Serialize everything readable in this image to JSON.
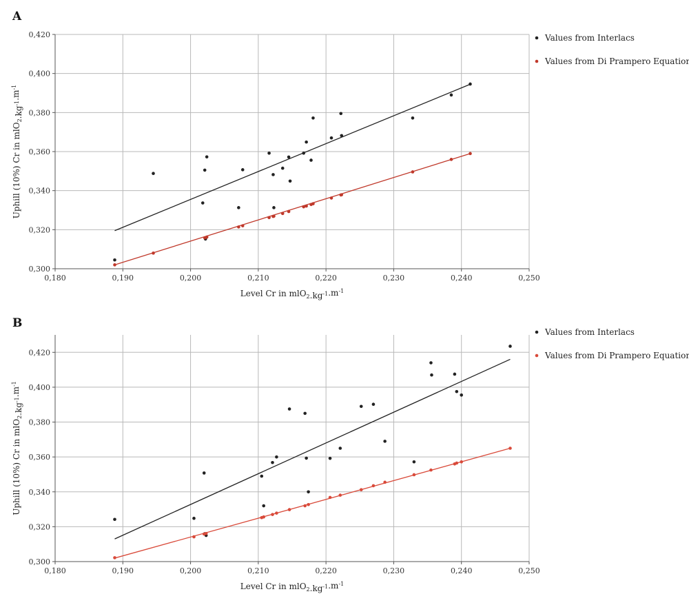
{
  "panels": [
    {
      "letter": "A",
      "chart_data": {
        "type": "scatter",
        "xlabel": "Level Cr in mlO2.kg-1.m-1",
        "ylabel": "Uphill (10%) Cr in mlO2.kg-1.m-1",
        "xlim": [
          0.18,
          0.25
        ],
        "ylim": [
          0.3,
          0.42
        ],
        "xticks": [
          "0,180",
          "0,190",
          "0,200",
          "0,210",
          "0,220",
          "0,230",
          "0,240",
          "0,250"
        ],
        "yticks": [
          "0,300",
          "0,320",
          "0,340",
          "0,360",
          "0,380",
          "0,400",
          "0,420"
        ],
        "grid": true,
        "legend_position": "right",
        "series": [
          {
            "name": "Values from Interlacs",
            "color": "#222222",
            "points": [
              [
                0.1888,
                0.3045
              ],
              [
                0.1945,
                0.3488
              ],
              [
                0.2018,
                0.3337
              ],
              [
                0.2021,
                0.3505
              ],
              [
                0.2024,
                0.3573
              ],
              [
                0.2022,
                0.3152
              ],
              [
                0.2071,
                0.3313
              ],
              [
                0.2077,
                0.3507
              ],
              [
                0.2116,
                0.3592
              ],
              [
                0.2122,
                0.3482
              ],
              [
                0.2123,
                0.3313
              ],
              [
                0.2136,
                0.3515
              ],
              [
                0.2145,
                0.3572
              ],
              [
                0.2147,
                0.3449
              ],
              [
                0.2167,
                0.3592
              ],
              [
                0.2171,
                0.3649
              ],
              [
                0.2178,
                0.3556
              ],
              [
                0.2181,
                0.3772
              ],
              [
                0.2208,
                0.367
              ],
              [
                0.2222,
                0.3795
              ],
              [
                0.2223,
                0.3682
              ],
              [
                0.2328,
                0.3772
              ],
              [
                0.2385,
                0.389
              ],
              [
                0.2413,
                0.3946
              ]
            ],
            "trendline": [
              [
                0.1888,
                0.3195
              ],
              [
                0.2413,
                0.3945
              ]
            ]
          },
          {
            "name": "Values from Di Prampero Equation",
            "color": "#c0392b",
            "points": [
              [
                0.1888,
                0.302
              ],
              [
                0.1945,
                0.308
              ],
              [
                0.2021,
                0.3158
              ],
              [
                0.2024,
                0.3162
              ],
              [
                0.2071,
                0.3214
              ],
              [
                0.2077,
                0.322
              ],
              [
                0.2116,
                0.3262
              ],
              [
                0.2122,
                0.3268
              ],
              [
                0.2123,
                0.3269
              ],
              [
                0.2136,
                0.3283
              ],
              [
                0.2145,
                0.3293
              ],
              [
                0.2167,
                0.3317
              ],
              [
                0.2171,
                0.3321
              ],
              [
                0.2178,
                0.3329
              ],
              [
                0.2181,
                0.3333
              ],
              [
                0.2208,
                0.3362
              ],
              [
                0.2222,
                0.3378
              ],
              [
                0.2223,
                0.3379
              ],
              [
                0.2328,
                0.3496
              ],
              [
                0.2385,
                0.356
              ],
              [
                0.2413,
                0.359
              ]
            ],
            "trendline": [
              [
                0.1888,
                0.302
              ],
              [
                0.2413,
                0.359
              ]
            ]
          }
        ]
      }
    },
    {
      "letter": "B",
      "chart_data": {
        "type": "scatter",
        "xlabel": "Level Cr in mlO2.kg-1.m-1",
        "ylabel": "Uphill (10%) Cr in mlO2.kg-1.m-1",
        "xlim": [
          0.18,
          0.25
        ],
        "ylim": [
          0.3,
          0.43
        ],
        "xticks": [
          "0,180",
          "0,190",
          "0,200",
          "0,210",
          "0,220",
          "0,230",
          "0,240",
          "0,250"
        ],
        "yticks": [
          "0,300",
          "0,320",
          "0,340",
          "0,360",
          "0,380",
          "0,400",
          "0,420"
        ],
        "grid": true,
        "legend_position": "right",
        "series": [
          {
            "name": "Values from Interlacs",
            "color": "#222222",
            "points": [
              [
                0.1888,
                0.3242
              ],
              [
                0.2005,
                0.3248
              ],
              [
                0.202,
                0.3508
              ],
              [
                0.2021,
                0.316
              ],
              [
                0.2023,
                0.315
              ],
              [
                0.2105,
                0.349
              ],
              [
                0.2108,
                0.332
              ],
              [
                0.2121,
                0.3568
              ],
              [
                0.2127,
                0.36
              ],
              [
                0.2146,
                0.3875
              ],
              [
                0.2169,
                0.385
              ],
              [
                0.2171,
                0.3593
              ],
              [
                0.2174,
                0.34
              ],
              [
                0.2206,
                0.3592
              ],
              [
                0.2221,
                0.365
              ],
              [
                0.2252,
                0.389
              ],
              [
                0.227,
                0.3902
              ],
              [
                0.2287,
                0.369
              ],
              [
                0.233,
                0.3572
              ],
              [
                0.2355,
                0.414
              ],
              [
                0.2356,
                0.407
              ],
              [
                0.239,
                0.4075
              ],
              [
                0.2393,
                0.3975
              ],
              [
                0.24,
                0.3955
              ],
              [
                0.2472,
                0.4235
              ]
            ],
            "trendline": [
              [
                0.1888,
                0.313
              ],
              [
                0.2472,
                0.416
              ]
            ]
          },
          {
            "name": "Values from Di Prampero Equation",
            "color": "#d94a3a",
            "points": [
              [
                0.1888,
                0.3022
              ],
              [
                0.2005,
                0.3142
              ],
              [
                0.202,
                0.3158
              ],
              [
                0.2023,
                0.3161
              ],
              [
                0.2105,
                0.3252
              ],
              [
                0.2108,
                0.3256
              ],
              [
                0.2121,
                0.327
              ],
              [
                0.2127,
                0.3278
              ],
              [
                0.2146,
                0.3298
              ],
              [
                0.2169,
                0.332
              ],
              [
                0.2174,
                0.3327
              ],
              [
                0.2206,
                0.3368
              ],
              [
                0.2221,
                0.3381
              ],
              [
                0.2252,
                0.3412
              ],
              [
                0.227,
                0.3435
              ],
              [
                0.2287,
                0.3455
              ],
              [
                0.233,
                0.3498
              ],
              [
                0.2355,
                0.3525
              ],
              [
                0.239,
                0.356
              ],
              [
                0.2393,
                0.3565
              ],
              [
                0.24,
                0.3572
              ],
              [
                0.2472,
                0.365
              ]
            ],
            "trendline": [
              [
                0.1888,
                0.302
              ],
              [
                0.2472,
                0.365
              ]
            ]
          }
        ]
      }
    }
  ]
}
